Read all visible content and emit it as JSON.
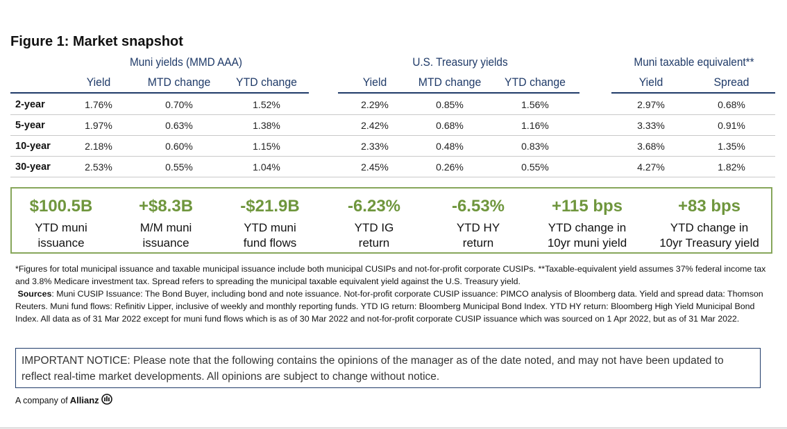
{
  "title": "Figure 1: Market snapshot",
  "groups": {
    "muni": "Muni yields (MMD AAA)",
    "treasury": "U.S. Treasury yields",
    "taxable": "Muni taxable equivalent**"
  },
  "columns": {
    "muni_yield": "Yield",
    "muni_mtd": "MTD change",
    "muni_ytd": "YTD change",
    "tsy_yield": "Yield",
    "tsy_mtd": "MTD change",
    "tsy_ytd": "YTD change",
    "te_yield": "Yield",
    "te_spread": "Spread"
  },
  "rows": [
    {
      "label": "2-year",
      "cells": [
        "1.76%",
        "0.70%",
        "1.52%",
        "2.29%",
        "0.85%",
        "1.56%",
        "2.97%",
        "0.68%"
      ]
    },
    {
      "label": "5-year",
      "cells": [
        "1.97%",
        "0.63%",
        "1.38%",
        "2.42%",
        "0.68%",
        "1.16%",
        "3.33%",
        "0.91%"
      ]
    },
    {
      "label": "10-year",
      "cells": [
        "2.18%",
        "0.60%",
        "1.15%",
        "2.33%",
        "0.48%",
        "0.83%",
        "3.68%",
        "1.35%"
      ]
    },
    {
      "label": "30-year",
      "cells": [
        "2.53%",
        "0.55%",
        "1.04%",
        "2.45%",
        "0.26%",
        "0.55%",
        "4.27%",
        "1.82%"
      ]
    }
  ],
  "kpis": [
    {
      "value": "$100.5B",
      "l1": "YTD muni",
      "l2": "issuance"
    },
    {
      "value": "+$8.3B",
      "l1": "M/M muni",
      "l2": "issuance"
    },
    {
      "value": "-$21.9B",
      "l1": "YTD muni",
      "l2": "fund flows"
    },
    {
      "value": "-6.23%",
      "l1": "YTD IG",
      "l2": "return"
    },
    {
      "value": "-6.53%",
      "l1": "YTD HY",
      "l2": "return"
    },
    {
      "value": "+115 bps",
      "l1": "YTD change in",
      "l2": "10yr muni yield"
    },
    {
      "value": "+83 bps",
      "l1": "YTD change in",
      "l2": "10yr Treasury yield"
    }
  ],
  "notes": {
    "figures": "*Figures for total municipal issuance and taxable municipal issuance include both municipal CUSIPs and not-for-profit corporate CUSIPs. **Taxable-equivalent yield assumes 37% federal income tax and 3.8% Medicare investment tax. Spread refers to spreading the municipal taxable equivalent yield against the U.S. Treasury yield.",
    "sources_label": "Sources",
    "sources": ": Muni CUSIP Issuance: The Bond Buyer, including bond and note issuance. Not-for-profit corporate CUSIP issuance: PIMCO analysis of Bloomberg data. Yield and spread data: Thomson Reuters. Muni fund flows: Refinitiv Lipper, inclusive of weekly and monthly reporting funds. YTD IG return: Bloomberg Municipal Bond Index. YTD HY return: Bloomberg High Yield Municipal Bond Index. All data as of 31 Mar 2022 except for muni fund flows which is as of 30 Mar 2022 and not-for-profit corporate CUSIP issuance which was sourced on 1 Apr 2022, but as of 31 Mar 2022."
  },
  "notice": "IMPORTANT NOTICE: Please note that the following contains the opinions of the manager as of the date noted, and may not have been updated to reflect real-time market developments. All opinions are subject to change without notice.",
  "brand": {
    "prefix": "A company of",
    "name": "Allianz"
  }
}
